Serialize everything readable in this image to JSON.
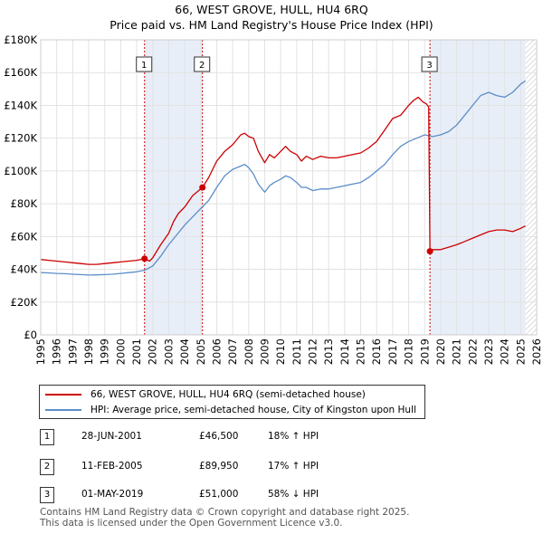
{
  "title_line1": "66, WEST GROVE, HULL, HU4 6RQ",
  "title_line2": "Price paid vs. HM Land Registry's House Price Index (HPI)",
  "chart_data": {
    "type": "line",
    "title": "66, WEST GROVE, HULL, HU4 6RQ — Price paid vs. HM Land Registry's House Price Index (HPI)",
    "xlabel": "",
    "ylabel": "",
    "xlim": [
      1995,
      2026
    ],
    "ylim": [
      0,
      180000
    ],
    "grid": true,
    "y_ticks": [
      0,
      20000,
      40000,
      60000,
      80000,
      100000,
      120000,
      140000,
      160000,
      180000
    ],
    "y_tick_labels": [
      "£0",
      "£20K",
      "£40K",
      "£60K",
      "£80K",
      "£100K",
      "£120K",
      "£140K",
      "£160K",
      "£180K"
    ],
    "x_ticks": [
      1995,
      1996,
      1997,
      1998,
      1999,
      2000,
      2001,
      2002,
      2003,
      2004,
      2005,
      2006,
      2007,
      2008,
      2009,
      2010,
      2011,
      2012,
      2013,
      2014,
      2015,
      2016,
      2017,
      2018,
      2019,
      2020,
      2021,
      2022,
      2023,
      2024,
      2025,
      2026
    ],
    "x_tick_labels": [
      "1995",
      "1996",
      "1997",
      "1998",
      "1999",
      "2000",
      "2001",
      "2002",
      "2003",
      "2004",
      "2005",
      "2006",
      "2007",
      "2008",
      "2009",
      "2010",
      "2011",
      "2012",
      "2013",
      "2014",
      "2015",
      "2016",
      "2017",
      "2018",
      "2019",
      "2020",
      "2021",
      "2022",
      "2023",
      "2024",
      "2025",
      "2026"
    ],
    "legend_position": "bottom",
    "series": [
      {
        "name": "66, WEST GROVE, HULL, HU4 6RQ (semi-detached house)",
        "color": "#cc0000",
        "x": [
          1995.0,
          1995.5,
          1996.0,
          1996.5,
          1997.0,
          1997.5,
          1998.0,
          1998.5,
          1999.0,
          1999.5,
          2000.0,
          2000.5,
          2001.0,
          2001.49,
          2001.8,
          2002.0,
          2002.5,
          2003.0,
          2003.3,
          2003.6,
          2004.0,
          2004.5,
          2005.11,
          2005.5,
          2006.0,
          2006.5,
          2007.0,
          2007.5,
          2007.75,
          2008.0,
          2008.3,
          2008.6,
          2009.0,
          2009.3,
          2009.6,
          2010.0,
          2010.3,
          2010.6,
          2011.0,
          2011.3,
          2011.6,
          2012.0,
          2012.5,
          2013.0,
          2013.5,
          2014.0,
          2014.5,
          2015.0,
          2015.5,
          2016.0,
          2016.5,
          2017.0,
          2017.5,
          2018.0,
          2018.3,
          2018.6,
          2018.9,
          2019.1,
          2019.25,
          2019.33,
          2019.5,
          2020.0,
          2020.5,
          2021.0,
          2021.5,
          2022.0,
          2022.5,
          2023.0,
          2023.5,
          2024.0,
          2024.5,
          2025.0,
          2025.3
        ],
        "values": [
          46000,
          45500,
          45000,
          44500,
          44000,
          43500,
          43000,
          43000,
          43500,
          44000,
          44500,
          45000,
          45500,
          46500,
          45000,
          47000,
          55000,
          62000,
          69000,
          74000,
          78000,
          85000,
          89950,
          96000,
          106000,
          112000,
          116000,
          122000,
          123000,
          121000,
          120000,
          112000,
          105000,
          110000,
          108000,
          112000,
          115000,
          112000,
          110000,
          106000,
          109000,
          107000,
          109000,
          108000,
          108000,
          109000,
          110000,
          111000,
          114000,
          118000,
          125000,
          132000,
          134000,
          140000,
          143000,
          145000,
          142000,
          141000,
          139000,
          51000,
          52000,
          52000,
          53500,
          55000,
          57000,
          59000,
          61000,
          63000,
          64000,
          64000,
          63000,
          65000,
          66500
        ]
      },
      {
        "name": "HPI: Average price, semi-detached house, City of Kingston upon Hull",
        "color": "#5b8ec9",
        "x": [
          1995.0,
          1995.5,
          1996.0,
          1996.5,
          1997.0,
          1997.5,
          1998.0,
          1998.5,
          1999.0,
          1999.5,
          2000.0,
          2000.5,
          2001.0,
          2001.5,
          2002.0,
          2002.5,
          2003.0,
          2003.5,
          2004.0,
          2004.5,
          2005.0,
          2005.5,
          2006.0,
          2006.5,
          2007.0,
          2007.5,
          2007.75,
          2008.0,
          2008.3,
          2008.6,
          2009.0,
          2009.3,
          2009.6,
          2010.0,
          2010.3,
          2010.6,
          2011.0,
          2011.3,
          2011.6,
          2012.0,
          2012.5,
          2013.0,
          2013.5,
          2014.0,
          2014.5,
          2015.0,
          2015.5,
          2016.0,
          2016.5,
          2017.0,
          2017.5,
          2018.0,
          2018.5,
          2019.0,
          2019.5,
          2020.0,
          2020.5,
          2021.0,
          2021.5,
          2022.0,
          2022.5,
          2023.0,
          2023.5,
          2024.0,
          2024.5,
          2025.0,
          2025.3
        ],
        "values": [
          38000,
          37800,
          37500,
          37300,
          37000,
          36800,
          36500,
          36600,
          36800,
          37000,
          37500,
          38000,
          38500,
          39500,
          42000,
          48000,
          55000,
          61000,
          67000,
          72000,
          77000,
          82000,
          90000,
          97000,
          101000,
          103000,
          104000,
          102000,
          98000,
          92000,
          87000,
          91000,
          93000,
          95000,
          97000,
          96000,
          93000,
          90000,
          90000,
          88000,
          89000,
          89000,
          90000,
          91000,
          92000,
          93000,
          96000,
          100000,
          104000,
          110000,
          115000,
          118000,
          120000,
          122000,
          121000,
          122000,
          124000,
          128000,
          134000,
          140000,
          146000,
          148000,
          146000,
          145000,
          148000,
          153000,
          155000
        ]
      }
    ],
    "vertical_markers": [
      {
        "label": "1",
        "x": 2001.49
      },
      {
        "label": "2",
        "x": 2005.11
      },
      {
        "label": "3",
        "x": 2019.33
      }
    ],
    "sale_points": [
      {
        "label": "1",
        "x": 2001.49,
        "value": 46500
      },
      {
        "label": "2",
        "x": 2005.11,
        "value": 89950
      },
      {
        "label": "3",
        "x": 2019.33,
        "value": 51000
      }
    ],
    "shaded_spans": [
      {
        "from": 2001.49,
        "to": 2005.11
      },
      {
        "from": 2019.33,
        "to": 2025.3
      }
    ],
    "hatch_from": 2025.3,
    "marker_color": "#cc0000"
  },
  "legend": {
    "items": [
      {
        "label": "66, WEST GROVE, HULL, HU4 6RQ (semi-detached house)",
        "color": "#cc0000"
      },
      {
        "label": "HPI: Average price, semi-detached house, City of Kingston upon Hull",
        "color": "#5b8ec9"
      }
    ]
  },
  "transactions": [
    {
      "num": "1",
      "date": "28-JUN-2001",
      "price": "£46,500",
      "hpi": "18% ↑ HPI"
    },
    {
      "num": "2",
      "date": "11-FEB-2005",
      "price": "£89,950",
      "hpi": "17% ↑ HPI"
    },
    {
      "num": "3",
      "date": "01-MAY-2019",
      "price": "£51,000",
      "hpi": "58% ↓ HPI"
    }
  ],
  "footer": {
    "line1": "Contains HM Land Registry data © Crown copyright and database right 2025.",
    "line2": "This data is licensed under the Open Government Licence v3.0."
  }
}
